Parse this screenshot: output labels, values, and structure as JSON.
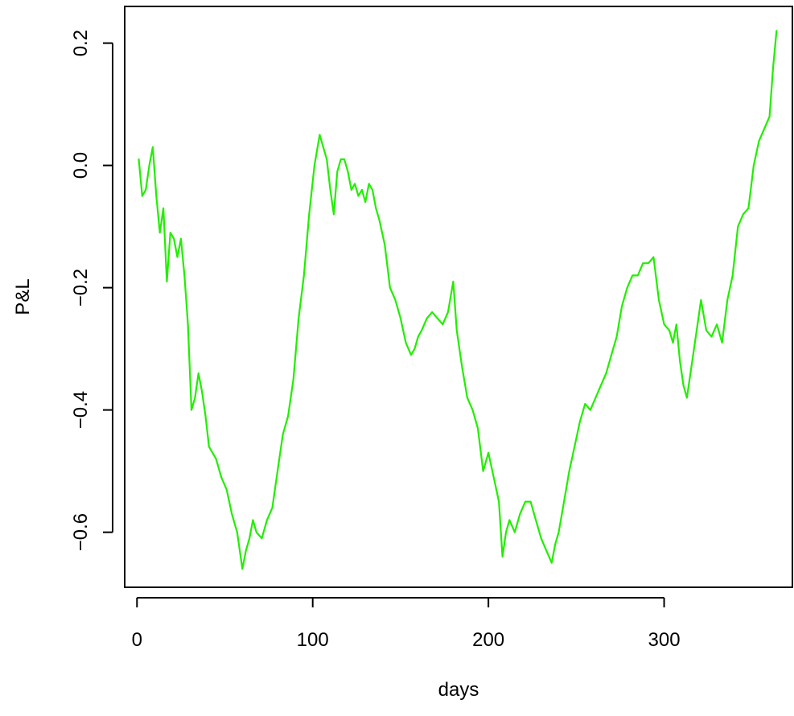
{
  "chart_data": {
    "type": "line",
    "title": "",
    "xlabel": "days",
    "ylabel": "P&L",
    "xlim": [
      -7,
      373
    ],
    "ylim": [
      -0.69,
      0.26
    ],
    "x_ticks": [
      0,
      100,
      200,
      300
    ],
    "x_tick_labels": [
      "0",
      "100",
      "200",
      "300"
    ],
    "y_ticks": [
      -0.6,
      -0.4,
      -0.2,
      0.0,
      0.2
    ],
    "y_tick_labels": [
      "-0.6",
      "-0.4",
      "-0.2",
      "0.0",
      "0.2"
    ],
    "grid": false,
    "legend": "none",
    "series": [
      {
        "color": "#22ee00",
        "x": [
          1,
          3,
          5,
          7,
          9,
          11,
          13,
          15,
          17,
          19,
          21,
          23,
          25,
          27,
          29,
          31,
          33,
          35,
          37,
          39,
          41,
          43,
          45,
          48,
          51,
          54,
          57,
          60,
          62,
          64,
          66,
          68,
          71,
          74,
          77,
          80,
          83,
          86,
          89,
          92,
          95,
          98,
          101,
          104,
          106,
          108,
          110,
          112,
          114,
          116,
          118,
          120,
          122,
          124,
          126,
          128,
          130,
          132,
          134,
          136,
          138,
          141,
          144,
          147,
          150,
          153,
          156,
          158,
          160,
          162,
          165,
          168,
          171,
          174,
          177,
          180,
          182,
          185,
          188,
          191,
          194,
          197,
          200,
          203,
          206,
          208,
          210,
          212,
          215,
          218,
          221,
          224,
          227,
          230,
          233,
          236,
          238,
          240,
          243,
          246,
          249,
          252,
          255,
          258,
          261,
          264,
          267,
          270,
          273,
          276,
          279,
          282,
          285,
          288,
          291,
          294,
          297,
          300,
          303,
          305,
          307,
          309,
          311,
          313,
          315,
          317,
          319,
          321,
          324,
          327,
          330,
          333,
          336,
          339,
          342,
          345,
          348,
          351,
          354,
          357,
          360,
          362,
          364
        ],
        "y": [
          0.01,
          -0.05,
          -0.04,
          0.0,
          0.03,
          -0.05,
          -0.11,
          -0.07,
          -0.19,
          -0.11,
          -0.12,
          -0.15,
          -0.12,
          -0.18,
          -0.26,
          -0.4,
          -0.38,
          -0.34,
          -0.37,
          -0.41,
          -0.46,
          -0.47,
          -0.48,
          -0.51,
          -0.53,
          -0.57,
          -0.6,
          -0.66,
          -0.63,
          -0.61,
          -0.58,
          -0.6,
          -0.61,
          -0.58,
          -0.56,
          -0.5,
          -0.44,
          -0.41,
          -0.35,
          -0.25,
          -0.18,
          -0.08,
          0.0,
          0.05,
          0.03,
          0.01,
          -0.04,
          -0.08,
          -0.01,
          0.01,
          0.01,
          -0.01,
          -0.04,
          -0.03,
          -0.05,
          -0.04,
          -0.06,
          -0.03,
          -0.04,
          -0.07,
          -0.09,
          -0.13,
          -0.2,
          -0.22,
          -0.25,
          -0.29,
          -0.31,
          -0.3,
          -0.28,
          -0.27,
          -0.25,
          -0.24,
          -0.25,
          -0.26,
          -0.24,
          -0.19,
          -0.27,
          -0.33,
          -0.38,
          -0.4,
          -0.43,
          -0.5,
          -0.47,
          -0.51,
          -0.55,
          -0.64,
          -0.6,
          -0.58,
          -0.6,
          -0.57,
          -0.55,
          -0.55,
          -0.58,
          -0.61,
          -0.63,
          -0.65,
          -0.62,
          -0.6,
          -0.55,
          -0.5,
          -0.46,
          -0.42,
          -0.39,
          -0.4,
          -0.38,
          -0.36,
          -0.34,
          -0.31,
          -0.28,
          -0.23,
          -0.2,
          -0.18,
          -0.18,
          -0.16,
          -0.16,
          -0.15,
          -0.22,
          -0.26,
          -0.27,
          -0.29,
          -0.26,
          -0.32,
          -0.36,
          -0.38,
          -0.34,
          -0.3,
          -0.26,
          -0.22,
          -0.27,
          -0.28,
          -0.26,
          -0.29,
          -0.22,
          -0.18,
          -0.1,
          -0.08,
          -0.07,
          0.0,
          0.04,
          0.06,
          0.08,
          0.16,
          0.22
        ]
      }
    ]
  }
}
